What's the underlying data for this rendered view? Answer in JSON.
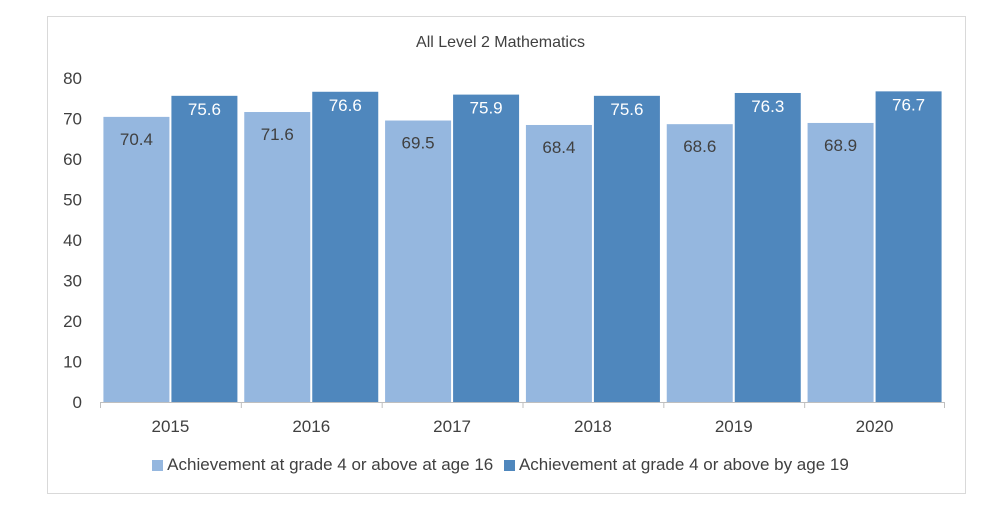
{
  "chart_data": {
    "type": "bar",
    "title": "All Level 2 Mathematics",
    "categories": [
      "2015",
      "2016",
      "2017",
      "2018",
      "2019",
      "2020"
    ],
    "series": [
      {
        "name": "Achievement at grade 4 or above at age 16",
        "values": [
          70.4,
          71.6,
          69.5,
          68.4,
          68.6,
          68.9
        ],
        "color": "#95b7df"
      },
      {
        "name": "Achievement at grade 4 or above by age 19",
        "values": [
          75.6,
          76.6,
          75.9,
          75.6,
          76.3,
          76.7
        ],
        "color": "#4f87bd"
      }
    ],
    "ylim": [
      0,
      80
    ],
    "yticks": [
      0,
      10,
      20,
      30,
      40,
      50,
      60,
      70,
      80
    ],
    "grid": false,
    "legend_position": "bottom",
    "data_labels": true
  }
}
